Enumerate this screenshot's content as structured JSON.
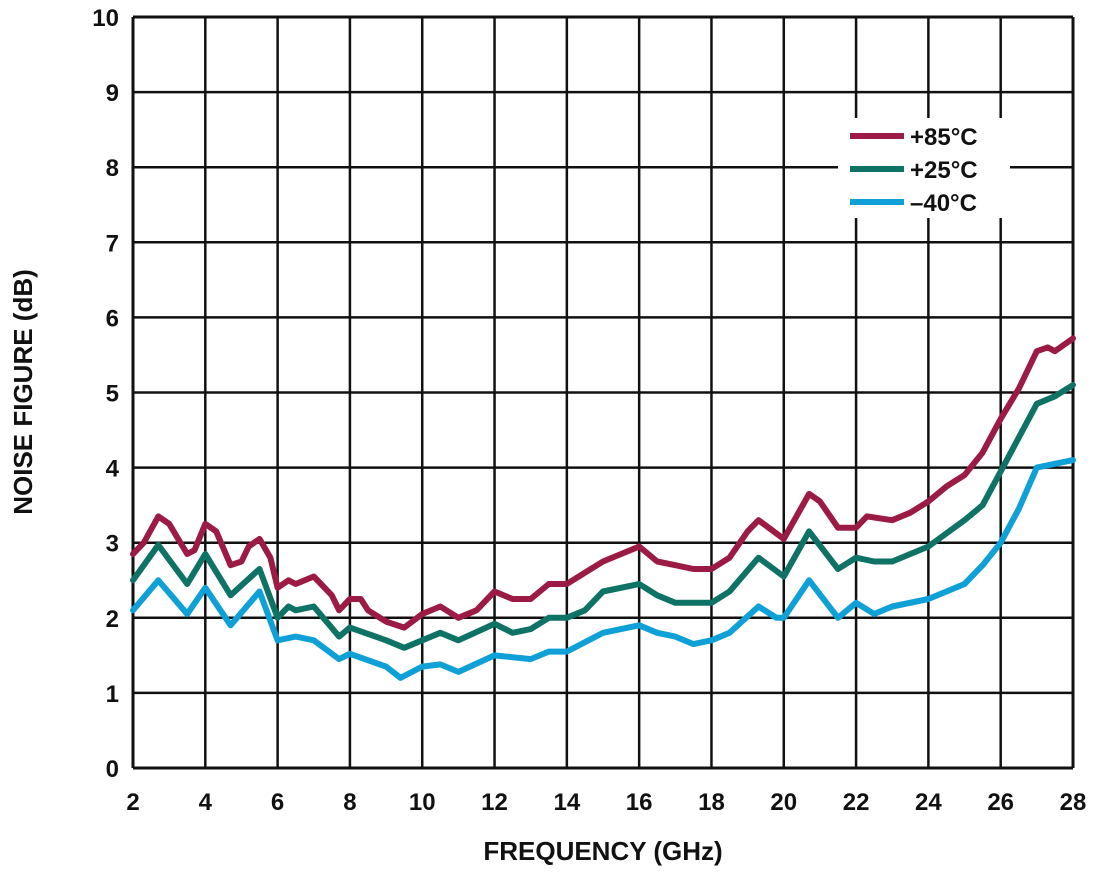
{
  "chart_data": {
    "type": "line",
    "title": "",
    "xlabel": "FREQUENCY (GHz)",
    "ylabel": "NOISE FIGURE (dB)",
    "xlim": [
      2,
      28
    ],
    "ylim": [
      0,
      10
    ],
    "xticks": [
      "2",
      "4",
      "6",
      "8",
      "10",
      "12",
      "14",
      "16",
      "18",
      "20",
      "22",
      "24",
      "26",
      "28"
    ],
    "yticks": [
      "0",
      "1",
      "2",
      "3",
      "4",
      "5",
      "6",
      "7",
      "8",
      "9",
      "10"
    ],
    "grid": true,
    "legend_position": "top-right",
    "series": [
      {
        "name": "+85°C",
        "color": "#9b1b45",
        "x": [
          2,
          2.3,
          2.7,
          3,
          3.5,
          3.7,
          4,
          4.3,
          4.7,
          5,
          5.2,
          5.5,
          5.8,
          6,
          6.3,
          6.5,
          7,
          7.5,
          7.7,
          8,
          8.3,
          8.5,
          9,
          9.5,
          10,
          10.5,
          11,
          11.5,
          12,
          12.5,
          13,
          13.5,
          14,
          14.5,
          15,
          15.5,
          16,
          16.5,
          17,
          17.5,
          18,
          18.5,
          19,
          19.3,
          20,
          20.7,
          21,
          21.5,
          22,
          22.3,
          23,
          23.5,
          24,
          24.5,
          25,
          25.5,
          26,
          26.5,
          27,
          27.3,
          27.5,
          28
        ],
        "y": [
          2.85,
          3.0,
          3.35,
          3.25,
          2.85,
          2.9,
          3.25,
          3.15,
          2.7,
          2.75,
          2.95,
          3.05,
          2.8,
          2.4,
          2.5,
          2.45,
          2.55,
          2.3,
          2.1,
          2.25,
          2.25,
          2.1,
          1.95,
          1.87,
          2.05,
          2.15,
          2.0,
          2.1,
          2.35,
          2.25,
          2.25,
          2.45,
          2.45,
          2.6,
          2.75,
          2.85,
          2.95,
          2.75,
          2.7,
          2.65,
          2.65,
          2.8,
          3.15,
          3.3,
          3.05,
          3.65,
          3.55,
          3.2,
          3.2,
          3.35,
          3.3,
          3.4,
          3.55,
          3.75,
          3.9,
          4.2,
          4.65,
          5.05,
          5.55,
          5.6,
          5.55,
          5.72
        ]
      },
      {
        "name": "+25°C",
        "color": "#0e7365",
        "x": [
          2,
          2.7,
          3.5,
          4,
          4.7,
          5.5,
          6,
          6.3,
          6.5,
          7,
          7.7,
          8,
          9,
          9.5,
          10,
          10.5,
          11,
          12,
          12.5,
          13,
          13.5,
          14,
          14.5,
          15,
          16,
          16.5,
          17,
          18,
          18.5,
          19.3,
          20,
          20.7,
          21.5,
          22,
          22.5,
          23,
          24,
          25,
          25.5,
          26,
          26.5,
          27,
          27.5,
          28
        ],
        "y": [
          2.5,
          2.97,
          2.45,
          2.85,
          2.3,
          2.65,
          2.0,
          2.15,
          2.1,
          2.15,
          1.75,
          1.87,
          1.7,
          1.6,
          1.7,
          1.8,
          1.7,
          1.92,
          1.8,
          1.85,
          2.0,
          2.0,
          2.1,
          2.35,
          2.45,
          2.3,
          2.2,
          2.2,
          2.35,
          2.8,
          2.55,
          3.15,
          2.65,
          2.8,
          2.75,
          2.75,
          2.95,
          3.3,
          3.5,
          3.95,
          4.4,
          4.85,
          4.95,
          5.1
        ]
      },
      {
        "name": "–40°C",
        "color": "#0ea0d6",
        "x": [
          2,
          2.7,
          3.5,
          4,
          4.7,
          5.5,
          6,
          6.5,
          7,
          7.7,
          8,
          9,
          9.4,
          10,
          10.5,
          11,
          12,
          13,
          13.5,
          14,
          15,
          16,
          16.5,
          17,
          17.5,
          18,
          18.5,
          19.3,
          19.8,
          20,
          20.7,
          21.5,
          22,
          22.5,
          23,
          24,
          25,
          25.5,
          26,
          26.5,
          27,
          27.5,
          28
        ],
        "y": [
          2.1,
          2.5,
          2.05,
          2.4,
          1.9,
          2.35,
          1.7,
          1.75,
          1.7,
          1.45,
          1.52,
          1.35,
          1.2,
          1.35,
          1.38,
          1.28,
          1.5,
          1.45,
          1.55,
          1.55,
          1.8,
          1.9,
          1.8,
          1.75,
          1.65,
          1.7,
          1.8,
          2.15,
          2.0,
          2.0,
          2.5,
          2.0,
          2.2,
          2.05,
          2.15,
          2.25,
          2.45,
          2.7,
          3.0,
          3.45,
          4.0,
          4.05,
          4.1
        ]
      }
    ]
  }
}
